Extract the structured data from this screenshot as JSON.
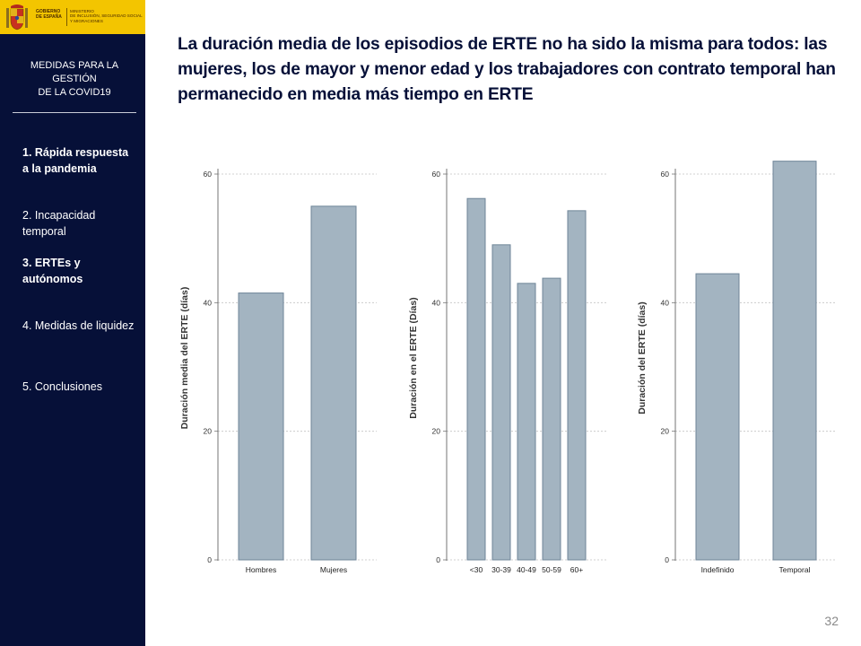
{
  "logo": {
    "government": "GOBIERNO\nDE ESPAÑA",
    "ministry": "MINISTERIO\nDE INCLUSIÓN, SEGURIDAD SOCIAL\nY MIGRACIONES"
  },
  "sidebar": {
    "title": "MEDIDAS  PARA LA\nGESTIÓN\nDE LA COVID19",
    "items": [
      {
        "label": "1. Rápida respuesta a la pandemia",
        "active": true
      },
      {
        "label": "2. Incapacidad temporal",
        "active": false
      },
      {
        "label": "3. ERTEs y autónomos",
        "active": true
      },
      {
        "label": "4. Medidas de liquidez",
        "active": false
      },
      {
        "label": "5. Conclusiones",
        "active": false
      }
    ]
  },
  "heading": "La duración media de los episodios de ERTE no ha sido la misma para todos: las mujeres, los de mayor y menor edad y los trabajadores con contrato temporal han permanecido en media más tiempo en ERTE",
  "page_number": "32",
  "colors": {
    "sidebar_bg": "#061038",
    "logo_bg": "#f3c500",
    "bar_fill": "#a3b4c1",
    "bar_stroke": "#6f8598",
    "heading": "#061038"
  },
  "chart_data": [
    {
      "type": "bar",
      "categories": [
        "Hombres",
        "Mujeres"
      ],
      "values": [
        41.5,
        55
      ],
      "ylabel": "Duración media del ERTE (días)",
      "ylim": [
        0,
        60
      ],
      "yticks": [
        0,
        20,
        40,
        60
      ],
      "grid": true
    },
    {
      "type": "bar",
      "categories": [
        "<30",
        "30-39",
        "40-49",
        "50-59",
        "60+"
      ],
      "values": [
        56.2,
        49,
        43,
        43.8,
        54.3
      ],
      "ylabel": "Duración en el ERTE (Días)",
      "ylim": [
        0,
        60
      ],
      "yticks": [
        0,
        20,
        40,
        60
      ],
      "grid": true
    },
    {
      "type": "bar",
      "categories": [
        "Indefinido",
        "Temporal"
      ],
      "values": [
        44.5,
        62
      ],
      "ylabel": "Duración del ERTE (días)",
      "ylim": [
        0,
        60
      ],
      "yticks": [
        0,
        20,
        40,
        60
      ],
      "grid": true
    }
  ]
}
